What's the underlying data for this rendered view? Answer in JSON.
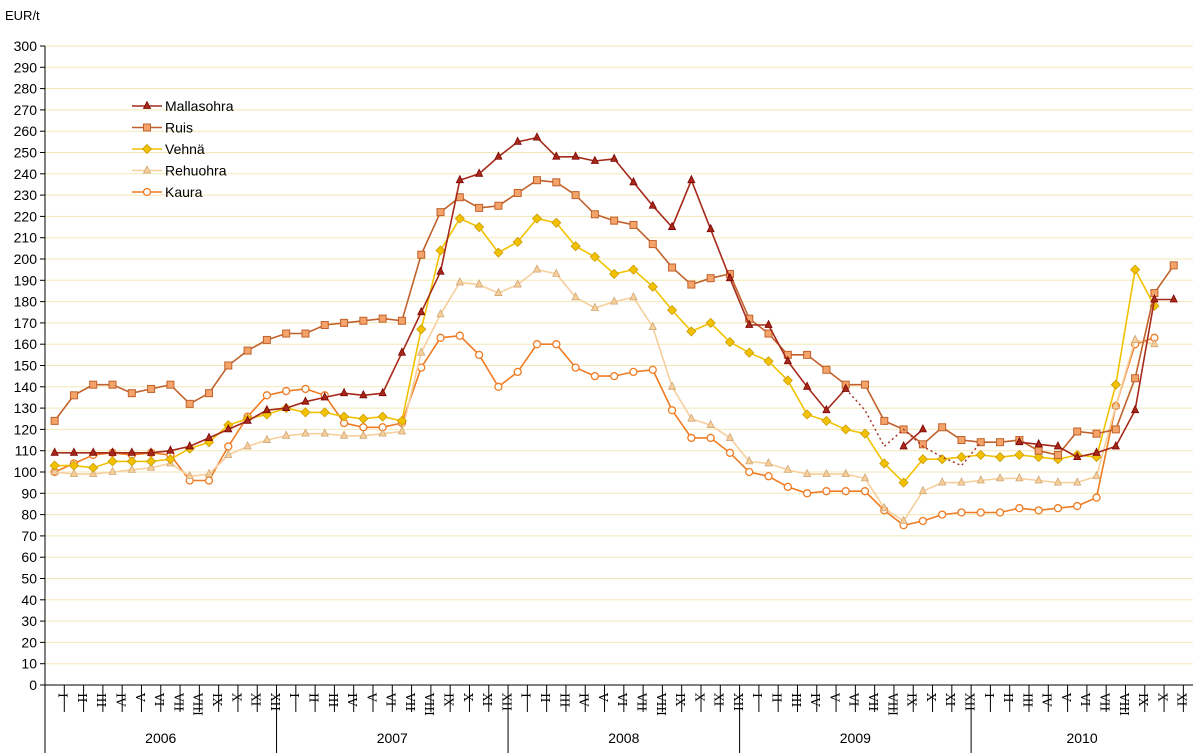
{
  "chart_data": {
    "type": "line",
    "ylabel": "EUR/t",
    "ylim": [
      0,
      300
    ],
    "ytick_step": 10,
    "grid": "horizontal",
    "legend_position": "top-left",
    "month_labels": [
      "I",
      "II",
      "III",
      "IV",
      "V",
      "VI",
      "VII",
      "VIII",
      "IX",
      "X",
      "XI",
      "XII"
    ],
    "years": [
      "2006",
      "2007",
      "2008",
      "2009",
      "2010"
    ],
    "series": [
      {
        "name": "Mallasohra",
        "color": "#a52a1b",
        "marker": "triangle",
        "values": [
          109,
          109,
          109,
          109,
          109,
          109,
          110,
          112,
          116,
          120,
          124,
          129,
          130,
          133,
          135,
          137,
          136,
          137,
          156,
          175,
          194,
          237,
          240,
          248,
          255,
          257,
          248,
          248,
          246,
          247,
          236,
          225,
          215,
          237,
          214,
          191,
          169,
          169,
          152,
          140,
          129,
          139,
          null,
          null,
          112,
          120,
          null,
          null,
          null,
          null,
          114,
          113,
          112,
          107,
          109,
          112,
          129,
          181,
          181
        ]
      },
      {
        "name": "Ruis",
        "color": "#c0612b",
        "marker": "square",
        "values": [
          124,
          136,
          141,
          141,
          137,
          139,
          141,
          132,
          137,
          150,
          157,
          162,
          165,
          165,
          169,
          170,
          171,
          172,
          171,
          202,
          222,
          229,
          224,
          225,
          231,
          237,
          236,
          230,
          221,
          218,
          216,
          207,
          196,
          188,
          191,
          193,
          172,
          165,
          155,
          155,
          148,
          141,
          141,
          124,
          120,
          113,
          121,
          115,
          114,
          114,
          115,
          110,
          108,
          119,
          118,
          120,
          144,
          184,
          197
        ]
      },
      {
        "name": "Vehnä",
        "color": "#f2c200",
        "marker": "diamond",
        "values": [
          103,
          103,
          102,
          105,
          105,
          105,
          106,
          111,
          114,
          122,
          125,
          127,
          130,
          128,
          128,
          126,
          125,
          126,
          124,
          167,
          204,
          219,
          215,
          203,
          208,
          219,
          217,
          206,
          201,
          193,
          195,
          187,
          176,
          166,
          170,
          161,
          156,
          152,
          143,
          127,
          124,
          120,
          118,
          104,
          95,
          106,
          106,
          107,
          108,
          107,
          108,
          107,
          106,
          108,
          107,
          141,
          195,
          178
        ]
      },
      {
        "name": "Rehuohra",
        "color": "#f7cf9c",
        "marker": "triangle",
        "values": [
          100,
          99,
          99,
          100,
          101,
          102,
          104,
          98,
          99,
          108,
          112,
          115,
          117,
          118,
          118,
          117,
          117,
          118,
          119,
          156,
          174,
          189,
          188,
          184,
          188,
          195,
          193,
          182,
          177,
          180,
          182,
          168,
          140,
          125,
          122,
          116,
          105,
          104,
          101,
          99,
          99,
          99,
          97,
          83,
          77,
          91,
          95,
          95,
          96,
          97,
          97,
          96,
          95,
          95,
          98,
          131,
          162,
          160
        ]
      },
      {
        "name": "Kaura",
        "color": "#ef7b22",
        "marker": "circle",
        "values": [
          100,
          104,
          108,
          109,
          108,
          109,
          108,
          96,
          96,
          112,
          126,
          136,
          138,
          139,
          136,
          123,
          121,
          121,
          123,
          149,
          163,
          164,
          155,
          140,
          147,
          160,
          160,
          149,
          145,
          145,
          147,
          148,
          129,
          116,
          116,
          109,
          100,
          98,
          93,
          90,
          91,
          91,
          91,
          82,
          75,
          77,
          80,
          81,
          81,
          81,
          83,
          82,
          83,
          84,
          88,
          131,
          160,
          163
        ]
      }
    ],
    "dotted_gap": {
      "series": "Mallasohra",
      "values": [
        139,
        129,
        112,
        120,
        112,
        107,
        103,
        114
      ]
    }
  }
}
